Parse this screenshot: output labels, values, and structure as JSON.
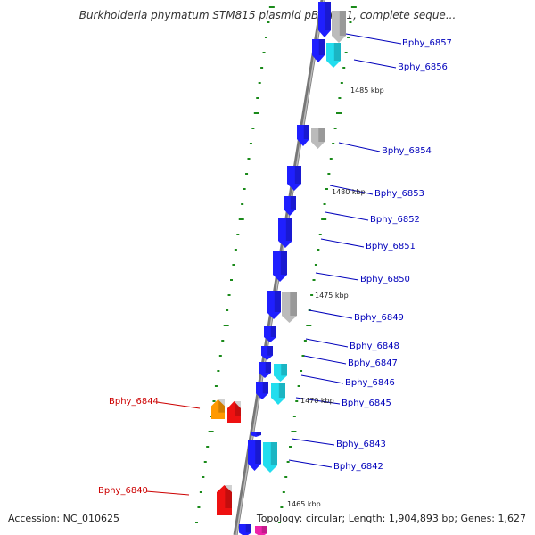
{
  "title": "Burkholderia phymatum STM815 plasmid pBPHY01, complete seque...",
  "accession": "Accession: NC_010625",
  "topology": "Topology: circular; Length: 1,904,893 bp; Genes: 1,627",
  "colors": {
    "gene_blue": "#1f1fff",
    "gene_cyan": "#22ddee",
    "gene_gray": "#bbbbbb",
    "gene_red": "#ee1111",
    "gene_orange": "#ff9900",
    "gene_magenta": "#ee22aa",
    "label_blue": "#0000bb",
    "label_red": "#cc0000",
    "tick_green": "#1a8a1a",
    "backbone": "#888888"
  },
  "scale_marks": [
    "1485 kbp",
    "1480 kbp",
    "1475 kbp",
    "1470 kbp",
    "1465 kbp"
  ],
  "gene_labels": [
    {
      "text": "Bphy_6857",
      "color": "blue"
    },
    {
      "text": "Bphy_6856",
      "color": "blue"
    },
    {
      "text": "Bphy_6854",
      "color": "blue"
    },
    {
      "text": "Bphy_6853",
      "color": "blue"
    },
    {
      "text": "Bphy_6852",
      "color": "blue"
    },
    {
      "text": "Bphy_6851",
      "color": "blue"
    },
    {
      "text": "Bphy_6850",
      "color": "blue"
    },
    {
      "text": "Bphy_6849",
      "color": "blue"
    },
    {
      "text": "Bphy_6848",
      "color": "blue"
    },
    {
      "text": "Bphy_6847",
      "color": "blue"
    },
    {
      "text": "Bphy_6846",
      "color": "blue"
    },
    {
      "text": "Bphy_6845",
      "color": "blue"
    },
    {
      "text": "Bphy_6843",
      "color": "blue"
    },
    {
      "text": "Bphy_6842",
      "color": "blue"
    },
    {
      "text": "Bphy_6844",
      "color": "red"
    },
    {
      "text": "Bphy_6840",
      "color": "red"
    }
  ]
}
